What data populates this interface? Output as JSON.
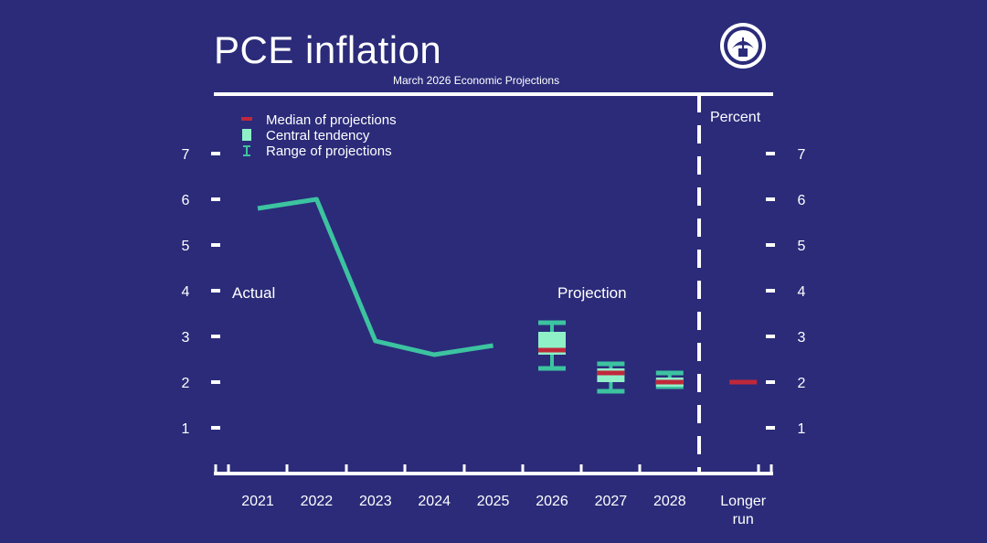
{
  "header": {
    "title": "PCE inflation",
    "subtitle": "March 2026 Economic Projections",
    "seal_icon": "federal-reserve-seal-icon"
  },
  "colors": {
    "background": "#2b2b7a",
    "actual_line": "#3cc3a0",
    "central_tendency": "#8ff0c8",
    "range": "#3cc3a0",
    "median": "#c0283a",
    "axis": "#ffffff"
  },
  "chart_data": {
    "type": "line",
    "title": "PCE inflation",
    "subtitle": "March 2026 Economic Projections",
    "ylabel": "Percent",
    "ylim": [
      0,
      8
    ],
    "yticks": [
      1,
      2,
      3,
      4,
      5,
      6,
      7
    ],
    "categories": [
      "2021",
      "2022",
      "2023",
      "2024",
      "2025",
      "2026",
      "2027",
      "2028",
      "Longer run"
    ],
    "annotations": {
      "actual": "Actual",
      "projection": "Projection"
    },
    "legend": [
      {
        "key": "median",
        "label": "Median of projections"
      },
      {
        "key": "central",
        "label": "Central tendency"
      },
      {
        "key": "range",
        "label": "Range of projections"
      }
    ],
    "legend_position": "top-left",
    "actual_series": {
      "name": "Actual",
      "x": [
        "2021",
        "2022",
        "2023",
        "2024",
        "2025"
      ],
      "values": [
        5.8,
        6.0,
        2.9,
        2.6,
        2.8
      ]
    },
    "projections": [
      {
        "x": "2026",
        "range": [
          2.3,
          3.3
        ],
        "central": [
          2.6,
          3.1
        ],
        "median": 2.7
      },
      {
        "x": "2027",
        "range": [
          1.8,
          2.4
        ],
        "central": [
          2.0,
          2.3
        ],
        "median": 2.2
      },
      {
        "x": "2028",
        "range": [
          1.9,
          2.2
        ],
        "central": [
          1.9,
          2.1
        ],
        "median": 2.0
      },
      {
        "x": "Longer run",
        "range": [
          2.0,
          2.0
        ],
        "central": [
          2.0,
          2.0
        ],
        "median": 2.0
      }
    ]
  }
}
